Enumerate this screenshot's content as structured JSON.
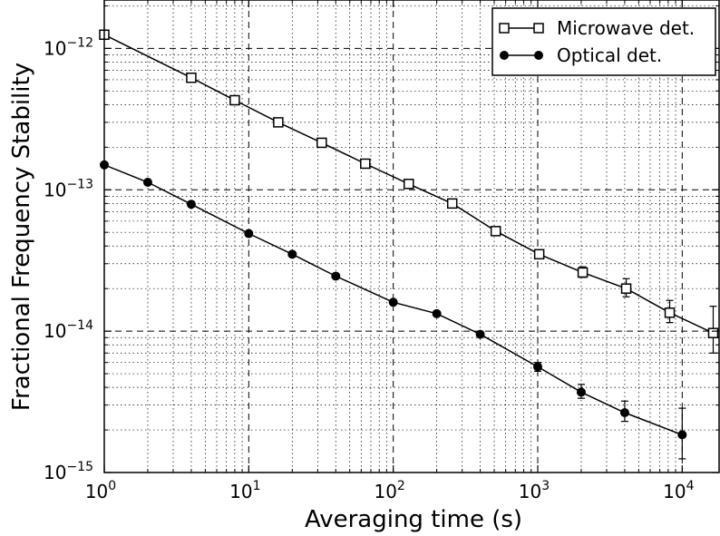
{
  "chart_data": {
    "type": "scatter",
    "xlabel": "Averaging time (s)",
    "ylabel": "Fractional Frequency Stability",
    "x_scale": "log",
    "y_scale": "log",
    "xlim": [
      1,
      18000
    ],
    "ylim": [
      1e-15,
      2.2e-12
    ],
    "grid": true,
    "legend_position": "top-right",
    "x_ticks": [
      {
        "value": 1,
        "base": "10",
        "exp": "0"
      },
      {
        "value": 10,
        "base": "10",
        "exp": "1"
      },
      {
        "value": 100,
        "base": "10",
        "exp": "2"
      },
      {
        "value": 1000,
        "base": "10",
        "exp": "3"
      },
      {
        "value": 10000,
        "base": "10",
        "exp": "4"
      }
    ],
    "y_ticks": [
      {
        "value": 1e-15,
        "base": "10",
        "exp": "−15"
      },
      {
        "value": 1e-14,
        "base": "10",
        "exp": "−14"
      },
      {
        "value": 1e-13,
        "base": "10",
        "exp": "−13"
      },
      {
        "value": 1e-12,
        "base": "10",
        "exp": "−12"
      }
    ],
    "series": [
      {
        "name": "Microwave det.",
        "marker": "open-square",
        "color": "#000000",
        "points": [
          {
            "x": 1,
            "y": 1.25e-12
          },
          {
            "x": 4,
            "y": 6.2e-13
          },
          {
            "x": 8,
            "y": 4.3e-13
          },
          {
            "x": 16,
            "y": 3e-13
          },
          {
            "x": 32,
            "y": 2.15e-13
          },
          {
            "x": 64,
            "y": 1.53e-13
          },
          {
            "x": 128,
            "y": 1.1e-13
          },
          {
            "x": 256,
            "y": 8e-14
          },
          {
            "x": 512,
            "y": 5.1e-14
          },
          {
            "x": 1024,
            "y": 3.5e-14
          },
          {
            "x": 2048,
            "y": 2.6e-14,
            "err_low": 2.4e-14,
            "err_high": 2.85e-14
          },
          {
            "x": 4096,
            "y": 2e-14,
            "err_low": 1.75e-14,
            "err_high": 2.35e-14
          },
          {
            "x": 8192,
            "y": 1.35e-14,
            "err_low": 1.15e-14,
            "err_high": 1.65e-14
          },
          {
            "x": 16384,
            "y": 9.7e-15,
            "err_low": 7e-15,
            "err_high": 1.5e-14
          }
        ]
      },
      {
        "name": "Optical det.",
        "marker": "filled-circle",
        "color": "#000000",
        "points": [
          {
            "x": 1,
            "y": 1.5e-13
          },
          {
            "x": 2,
            "y": 1.13e-13
          },
          {
            "x": 4,
            "y": 7.9e-14
          },
          {
            "x": 10,
            "y": 4.9e-14
          },
          {
            "x": 20,
            "y": 3.5e-14
          },
          {
            "x": 40,
            "y": 2.45e-14
          },
          {
            "x": 100,
            "y": 1.6e-14
          },
          {
            "x": 200,
            "y": 1.33e-14
          },
          {
            "x": 400,
            "y": 9.5e-15
          },
          {
            "x": 1000,
            "y": 5.6e-15,
            "err_low": 5.2e-15,
            "err_high": 6e-15
          },
          {
            "x": 2000,
            "y": 3.7e-15,
            "err_low": 3.35e-15,
            "err_high": 4.2e-15
          },
          {
            "x": 4000,
            "y": 2.65e-15,
            "err_low": 2.3e-15,
            "err_high": 3.2e-15
          },
          {
            "x": 10000,
            "y": 1.85e-15,
            "err_low": 1.25e-15,
            "err_high": 2.85e-15
          }
        ]
      }
    ]
  }
}
